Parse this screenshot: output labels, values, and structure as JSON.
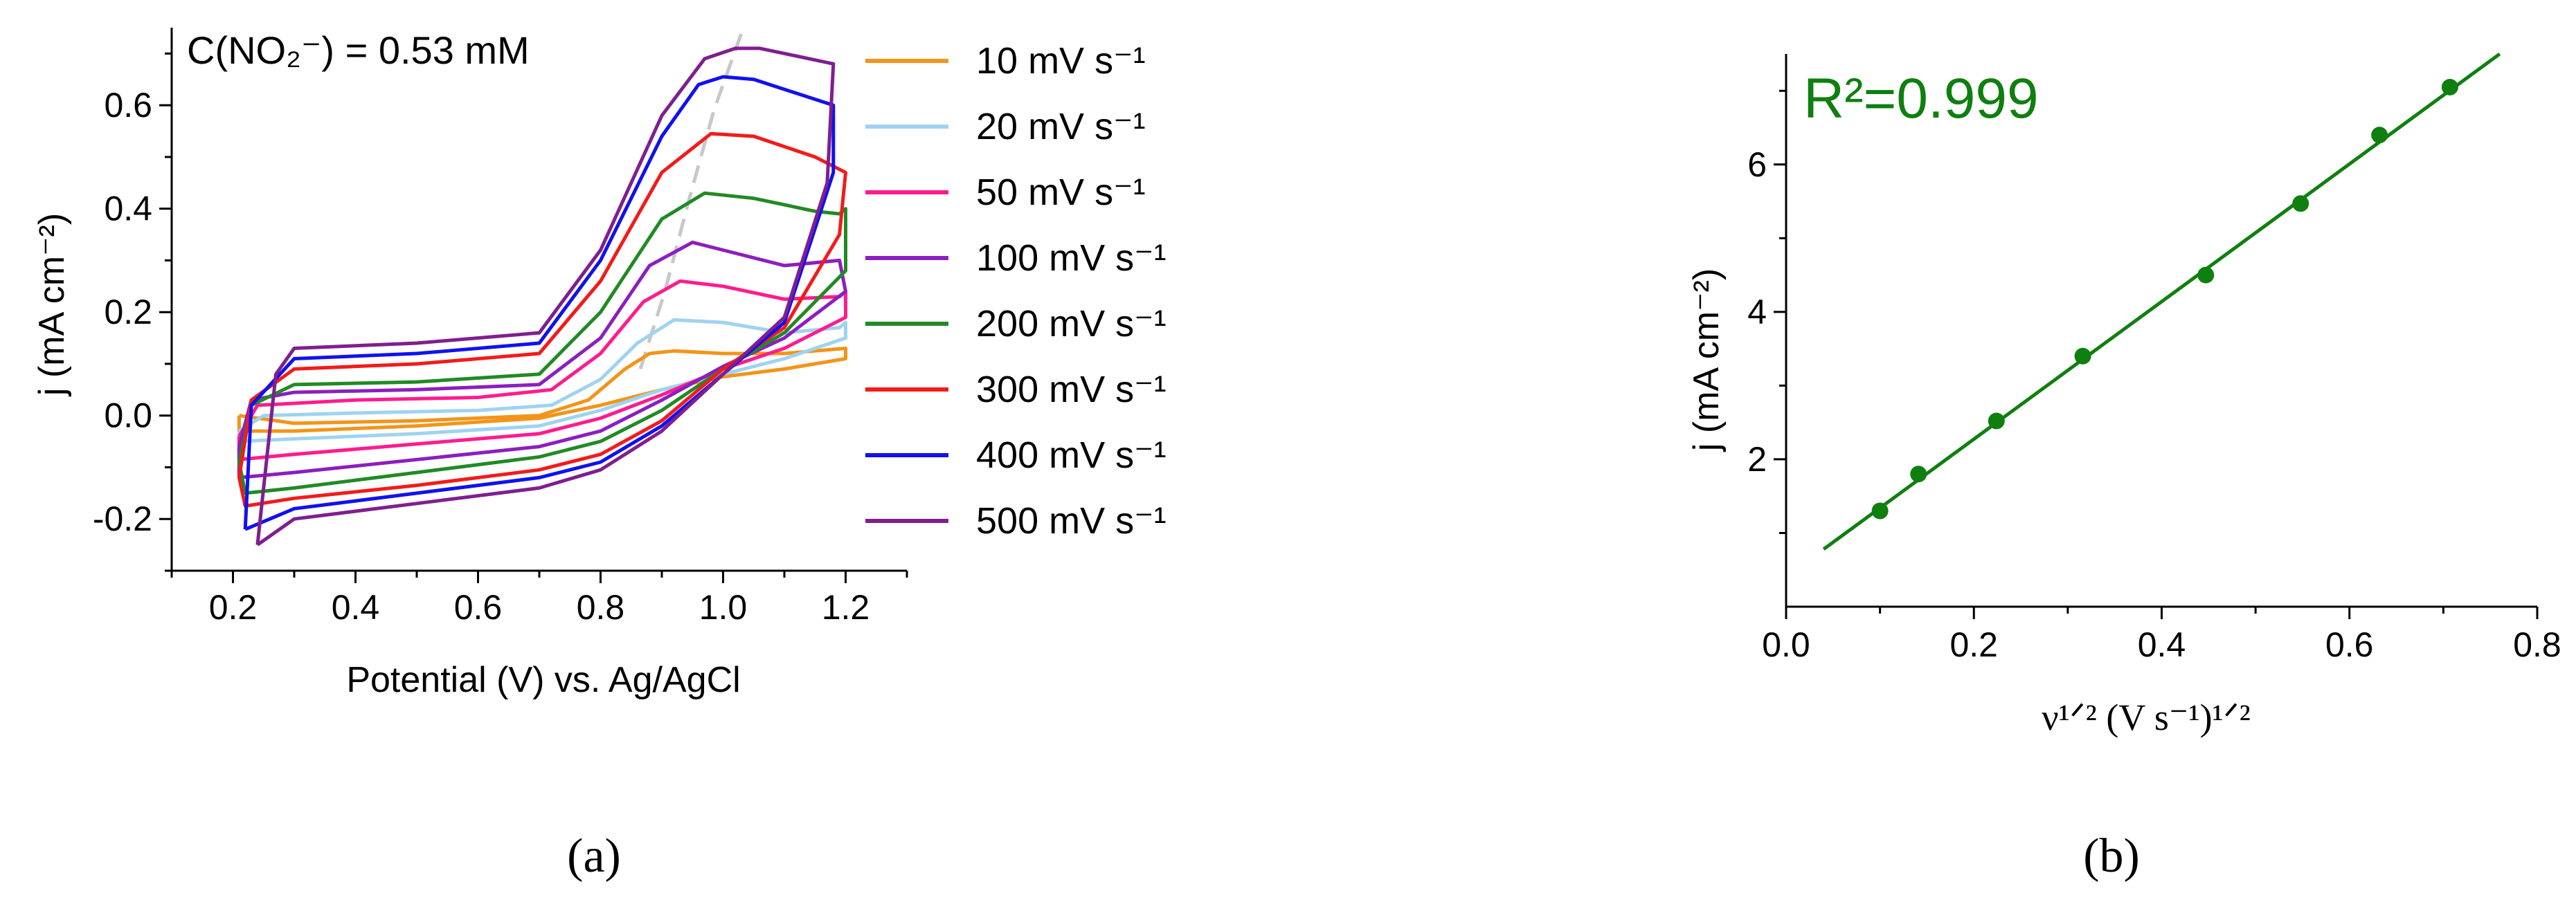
{
  "panel_a": {
    "caption": "(a)",
    "chart_data": {
      "type": "line",
      "xlabel": "Potential (V) vs. Ag/AgCl",
      "ylabel": "j (mA cm⁻²)",
      "annotation": "C(NO₂⁻) = 0.53 mM",
      "xlim": [
        0.1,
        1.3
      ],
      "ylim": [
        -0.3,
        0.75
      ],
      "xticks": [
        "0.2",
        "0.4",
        "0.6",
        "0.8",
        "1.0",
        "1.2"
      ],
      "xtick_values": [
        0.2,
        0.4,
        0.6,
        0.8,
        1.0,
        1.2
      ],
      "yticks": [
        "-0.2",
        "0.0",
        "0.2",
        "0.4",
        "0.6"
      ],
      "ytick_values": [
        -0.2,
        0.0,
        0.2,
        0.4,
        0.6
      ],
      "legend_position": "right",
      "guide_line": {
        "style": "dashed",
        "color": "#c8c8c8",
        "points": [
          [
            0.865,
            0.09
          ],
          [
            0.905,
            0.24
          ],
          [
            0.945,
            0.42
          ],
          [
            0.985,
            0.59
          ],
          [
            1.03,
            0.74
          ]
        ]
      },
      "series": [
        {
          "name": "10 mV s⁻¹",
          "color": "#f39419",
          "forward": [
            [
              0.21,
              0.0
            ],
            [
              0.3,
              -0.015
            ],
            [
              0.5,
              -0.01
            ],
            [
              0.7,
              0.0
            ],
            [
              0.78,
              0.03
            ],
            [
              0.84,
              0.09
            ],
            [
              0.88,
              0.12
            ],
            [
              0.92,
              0.125
            ],
            [
              1.0,
              0.12
            ],
            [
              1.1,
              0.12
            ],
            [
              1.2,
              0.13
            ]
          ],
          "reverse": [
            [
              1.2,
              0.11
            ],
            [
              1.1,
              0.09
            ],
            [
              1.0,
              0.075
            ],
            [
              0.9,
              0.05
            ],
            [
              0.8,
              0.02
            ],
            [
              0.7,
              -0.005
            ],
            [
              0.5,
              -0.02
            ],
            [
              0.3,
              -0.03
            ],
            [
              0.21,
              -0.03
            ]
          ]
        },
        {
          "name": "20 mV s⁻¹",
          "color": "#9fd3f0",
          "forward": [
            [
              0.21,
              -0.03
            ],
            [
              0.25,
              0.0
            ],
            [
              0.4,
              0.005
            ],
            [
              0.6,
              0.01
            ],
            [
              0.72,
              0.02
            ],
            [
              0.8,
              0.07
            ],
            [
              0.86,
              0.14
            ],
            [
              0.92,
              0.185
            ],
            [
              1.0,
              0.18
            ],
            [
              1.1,
              0.16
            ],
            [
              1.19,
              0.17
            ],
            [
              1.2,
              0.18
            ]
          ],
          "reverse": [
            [
              1.2,
              0.15
            ],
            [
              1.1,
              0.11
            ],
            [
              1.0,
              0.08
            ],
            [
              0.9,
              0.05
            ],
            [
              0.8,
              0.01
            ],
            [
              0.7,
              -0.02
            ],
            [
              0.5,
              -0.035
            ],
            [
              0.3,
              -0.045
            ],
            [
              0.21,
              -0.05
            ]
          ]
        },
        {
          "name": "50 mV s⁻¹",
          "color": "#ff1c8e",
          "forward": [
            [
              0.21,
              -0.04
            ],
            [
              0.24,
              0.02
            ],
            [
              0.4,
              0.03
            ],
            [
              0.6,
              0.035
            ],
            [
              0.72,
              0.05
            ],
            [
              0.8,
              0.12
            ],
            [
              0.87,
              0.22
            ],
            [
              0.93,
              0.26
            ],
            [
              1.0,
              0.25
            ],
            [
              1.1,
              0.225
            ],
            [
              1.19,
              0.23
            ],
            [
              1.2,
              0.24
            ]
          ],
          "reverse": [
            [
              1.2,
              0.19
            ],
            [
              1.1,
              0.13
            ],
            [
              1.0,
              0.09
            ],
            [
              0.9,
              0.04
            ],
            [
              0.8,
              -0.005
            ],
            [
              0.7,
              -0.035
            ],
            [
              0.5,
              -0.055
            ],
            [
              0.3,
              -0.075
            ],
            [
              0.21,
              -0.085
            ]
          ]
        },
        {
          "name": "100 mV s⁻¹",
          "color": "#8b1fbf",
          "forward": [
            [
              0.21,
              -0.06
            ],
            [
              0.23,
              0.03
            ],
            [
              0.3,
              0.045
            ],
            [
              0.5,
              0.05
            ],
            [
              0.7,
              0.06
            ],
            [
              0.8,
              0.15
            ],
            [
              0.88,
              0.29
            ],
            [
              0.95,
              0.335
            ],
            [
              1.0,
              0.32
            ],
            [
              1.1,
              0.29
            ],
            [
              1.19,
              0.3
            ]
          ],
          "reverse": [
            [
              1.2,
              0.24
            ],
            [
              1.1,
              0.15
            ],
            [
              1.0,
              0.095
            ],
            [
              0.9,
              0.03
            ],
            [
              0.8,
              -0.03
            ],
            [
              0.7,
              -0.06
            ],
            [
              0.5,
              -0.085
            ],
            [
              0.3,
              -0.11
            ],
            [
              0.21,
              -0.12
            ]
          ]
        },
        {
          "name": "200 mV s⁻¹",
          "color": "#218a24",
          "forward": [
            [
              0.21,
              -0.09
            ],
            [
              0.23,
              0.02
            ],
            [
              0.3,
              0.06
            ],
            [
              0.5,
              0.065
            ],
            [
              0.7,
              0.08
            ],
            [
              0.8,
              0.2
            ],
            [
              0.9,
              0.38
            ],
            [
              0.97,
              0.43
            ],
            [
              1.05,
              0.42
            ],
            [
              1.15,
              0.395
            ],
            [
              1.19,
              0.39
            ],
            [
              1.2,
              0.4
            ]
          ],
          "reverse": [
            [
              1.2,
              0.28
            ],
            [
              1.1,
              0.16
            ],
            [
              1.0,
              0.09
            ],
            [
              0.9,
              0.01
            ],
            [
              0.8,
              -0.05
            ],
            [
              0.7,
              -0.08
            ],
            [
              0.5,
              -0.11
            ],
            [
              0.3,
              -0.14
            ],
            [
              0.22,
              -0.15
            ]
          ]
        },
        {
          "name": "300 mV s⁻¹",
          "color": "#f21b1b",
          "forward": [
            [
              0.21,
              -0.12
            ],
            [
              0.23,
              0.03
            ],
            [
              0.3,
              0.09
            ],
            [
              0.5,
              0.1
            ],
            [
              0.7,
              0.12
            ],
            [
              0.8,
              0.26
            ],
            [
              0.9,
              0.47
            ],
            [
              0.98,
              0.545
            ],
            [
              1.05,
              0.54
            ],
            [
              1.15,
              0.5
            ],
            [
              1.2,
              0.47
            ]
          ],
          "reverse": [
            [
              1.19,
              0.35
            ],
            [
              1.1,
              0.17
            ],
            [
              1.0,
              0.09
            ],
            [
              0.9,
              -0.01
            ],
            [
              0.8,
              -0.075
            ],
            [
              0.7,
              -0.105
            ],
            [
              0.5,
              -0.135
            ],
            [
              0.3,
              -0.16
            ],
            [
              0.22,
              -0.175
            ]
          ]
        },
        {
          "name": "400 mV s⁻¹",
          "color": "#1111ee",
          "forward": [
            [
              0.22,
              -0.22
            ],
            [
              0.23,
              0.02
            ],
            [
              0.3,
              0.11
            ],
            [
              0.5,
              0.12
            ],
            [
              0.7,
              0.14
            ],
            [
              0.8,
              0.3
            ],
            [
              0.9,
              0.54
            ],
            [
              0.96,
              0.64
            ],
            [
              1.0,
              0.655
            ],
            [
              1.05,
              0.65
            ],
            [
              1.18,
              0.6
            ]
          ],
          "reverse": [
            [
              1.18,
              0.47
            ],
            [
              1.1,
              0.18
            ],
            [
              1.0,
              0.08
            ],
            [
              0.9,
              -0.02
            ],
            [
              0.8,
              -0.09
            ],
            [
              0.7,
              -0.12
            ],
            [
              0.5,
              -0.15
            ],
            [
              0.3,
              -0.18
            ],
            [
              0.22,
              -0.22
            ]
          ]
        },
        {
          "name": "500 mV s⁻¹",
          "color": "#7f1f8f",
          "forward": [
            [
              0.24,
              -0.25
            ],
            [
              0.27,
              0.08
            ],
            [
              0.3,
              0.13
            ],
            [
              0.5,
              0.14
            ],
            [
              0.7,
              0.16
            ],
            [
              0.8,
              0.32
            ],
            [
              0.9,
              0.58
            ],
            [
              0.97,
              0.69
            ],
            [
              1.02,
              0.71
            ],
            [
              1.06,
              0.71
            ],
            [
              1.18,
              0.68
            ]
          ],
          "reverse": [
            [
              1.17,
              0.45
            ],
            [
              1.1,
              0.19
            ],
            [
              1.0,
              0.08
            ],
            [
              0.9,
              -0.03
            ],
            [
              0.8,
              -0.105
            ],
            [
              0.7,
              -0.14
            ],
            [
              0.5,
              -0.17
            ],
            [
              0.3,
              -0.2
            ],
            [
              0.24,
              -0.25
            ]
          ]
        }
      ]
    }
  },
  "panel_b": {
    "caption": "(b)",
    "chart_data": {
      "type": "scatter",
      "xlabel": "ν¹ᐟ² (V s⁻¹)¹ᐟ²",
      "ylabel": "j (mA cm⁻²)",
      "annotation": "R²=0.999",
      "xlim": [
        0.0,
        0.8
      ],
      "ylim": [
        0.0,
        7.5
      ],
      "xticks": [
        "0.0",
        "0.2",
        "0.4",
        "0.6",
        "0.8"
      ],
      "xtick_values": [
        0.0,
        0.2,
        0.4,
        0.6,
        0.8
      ],
      "yticks": [
        "2",
        "4",
        "6"
      ],
      "ytick_values": [
        2,
        4,
        6
      ],
      "color": "#0f7f0f",
      "points": [
        [
          0.1,
          1.3
        ],
        [
          0.141,
          1.8
        ],
        [
          0.224,
          2.52
        ],
        [
          0.316,
          3.4
        ],
        [
          0.447,
          4.5
        ],
        [
          0.548,
          5.47
        ],
        [
          0.632,
          6.4
        ],
        [
          0.707,
          7.05
        ]
      ],
      "fit_line": [
        [
          0.04,
          0.78
        ],
        [
          0.76,
          7.5
        ]
      ]
    }
  }
}
